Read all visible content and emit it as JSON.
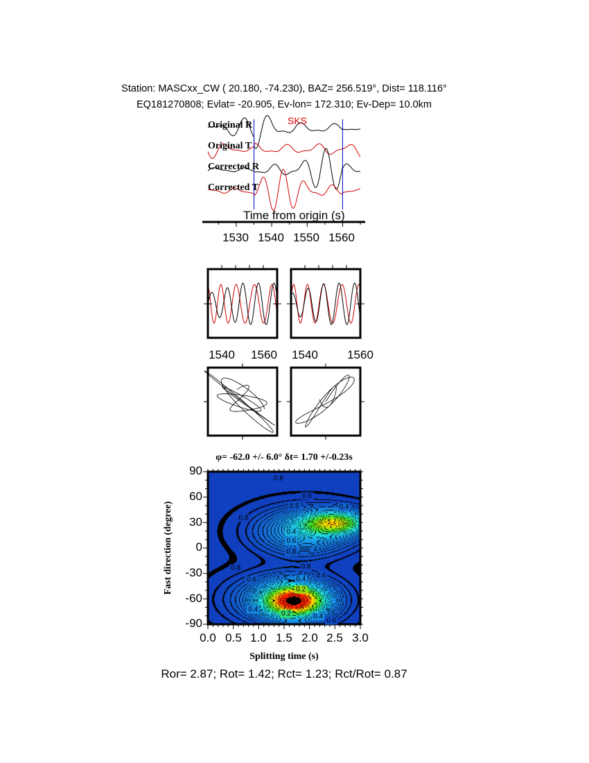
{
  "header": {
    "line1": "Station: MASCxx_CW (  20.180,  -74.230), BAZ=  256.519°, Dist=  118.116°",
    "line2": "EQ181270808; Evlat= -20.905, Ev-lon= 172.310; Ev-Dep= 10.0km"
  },
  "chart_data": [
    {
      "type": "line",
      "panel": "seismograms",
      "xlabel": "Time from origin (s)",
      "xlim": [
        1522,
        1565
      ],
      "x_ticks": [
        "1530",
        "1540",
        "1550",
        "1560"
      ],
      "trace_labels": [
        "Original R",
        "Original T",
        "Corrected R",
        "Corrected T"
      ],
      "trace_colors": [
        "#000000",
        "#d00000",
        "#000000",
        "#d00000"
      ],
      "phase_label": "SKS",
      "phase_color": "#e00000",
      "window_markers": [
        1535,
        1560
      ],
      "marker_color": "#0000c0"
    },
    {
      "type": "line",
      "panel": "window-original",
      "xlim": [
        1535,
        1560
      ],
      "x_ticks": [
        "1540",
        "1560"
      ]
    },
    {
      "type": "line",
      "panel": "window-corrected",
      "xlim": [
        1535,
        1560
      ],
      "x_ticks": [
        "1540",
        "1560"
      ]
    },
    {
      "type": "line",
      "panel": "particle-motion-original"
    },
    {
      "type": "line",
      "panel": "particle-motion-corrected"
    },
    {
      "type": "heatmap",
      "title": "φ= -62.0 +/- 6.0° δt= 1.70 +/-0.23s",
      "xlabel": "Splitting time (s)",
      "ylabel": "Fast direction (degree)",
      "xlim": [
        0,
        3
      ],
      "ylim": [
        -90,
        90
      ],
      "x_ticks": [
        "0.0",
        "0.5",
        "1.0",
        "1.5",
        "2.0",
        "2.5",
        "3.0"
      ],
      "y_ticks": [
        "90",
        "60",
        "30",
        "0",
        "-30",
        "-60",
        "-90"
      ],
      "best_fit": {
        "dt": 1.7,
        "phi": -62.0
      },
      "colormap": [
        "#ff2000",
        "#ffe000",
        "#40e020",
        "#20e0e0",
        "#1890e8",
        "#1040c0"
      ],
      "contour_labels": [
        {
          "value": "0.8",
          "dt": 1.39,
          "phi": 82
        },
        {
          "value": "0.6",
          "dt": 1.95,
          "phi": 61
        },
        {
          "value": "0.5",
          "dt": 1.7,
          "phi": 49
        },
        {
          "value": "0.4",
          "dt": 2.68,
          "phi": 48
        },
        {
          "value": "0.8",
          "dt": 0.7,
          "phi": 35
        },
        {
          "value": "0.4",
          "dt": 1.64,
          "phi": 19
        },
        {
          "value": "0.6",
          "dt": 1.64,
          "phi": 8
        },
        {
          "value": "0.8",
          "dt": 1.64,
          "phi": -5
        },
        {
          "value": "0.8",
          "dt": 0.55,
          "phi": -24
        },
        {
          "value": "0.8",
          "dt": 1.93,
          "phi": -22
        },
        {
          "value": "0.6",
          "dt": 0.86,
          "phi": -38
        },
        {
          "value": "0.4",
          "dt": 1.83,
          "phi": -37
        },
        {
          "value": "0.6",
          "dt": 2.23,
          "phi": -33
        },
        {
          "value": "0.2",
          "dt": 1.83,
          "phi": -49
        },
        {
          "value": "0.4",
          "dt": 0.89,
          "phi": -73
        },
        {
          "value": "0.2",
          "dt": 1.54,
          "phi": -78
        },
        {
          "value": "0.4",
          "dt": 2.17,
          "phi": -81
        },
        {
          "value": "0.6",
          "dt": 2.43,
          "phi": -86
        }
      ]
    }
  ],
  "footer": "Ror= 2.87; Rot= 1.42; Rct= 1.23; Rct/Rot= 0.87"
}
